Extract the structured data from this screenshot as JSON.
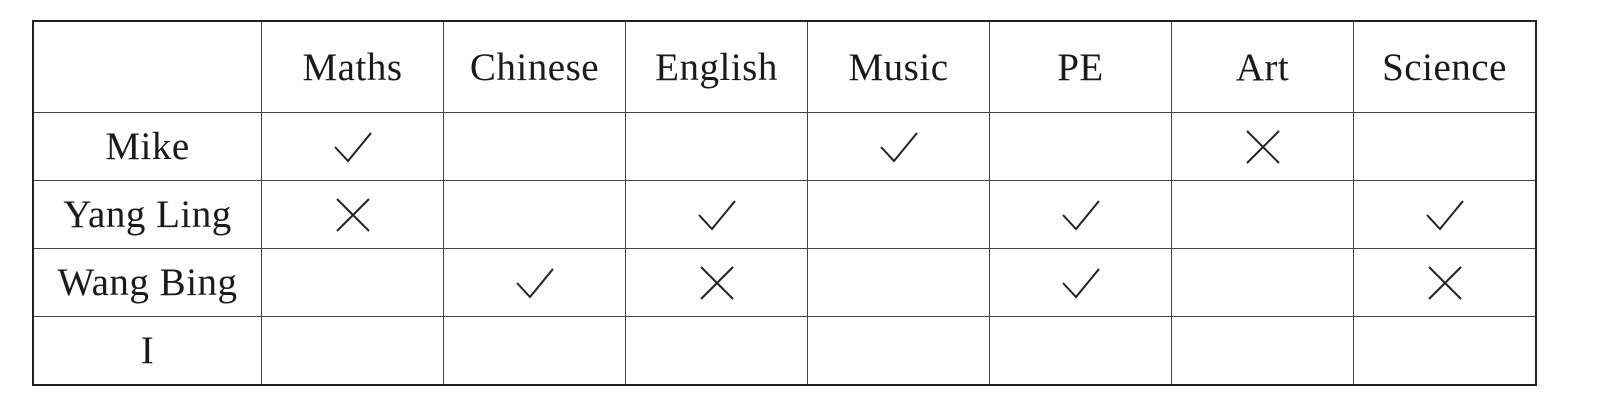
{
  "table": {
    "columns": [
      "",
      "Maths",
      "Chinese",
      "English",
      "Music",
      "PE",
      "Art",
      "Science"
    ],
    "rows": [
      {
        "name": "Mike",
        "marks": [
          "check",
          "",
          "",
          "check",
          "",
          "cross",
          ""
        ]
      },
      {
        "name": "Yang Ling",
        "marks": [
          "cross",
          "",
          "check",
          "",
          "check",
          "",
          "check"
        ]
      },
      {
        "name": "Wang Bing",
        "marks": [
          "",
          "check",
          "cross",
          "",
          "check",
          "",
          "cross"
        ]
      },
      {
        "name": "I",
        "marks": [
          "",
          "",
          "",
          "",
          "",
          "",
          ""
        ]
      }
    ]
  }
}
